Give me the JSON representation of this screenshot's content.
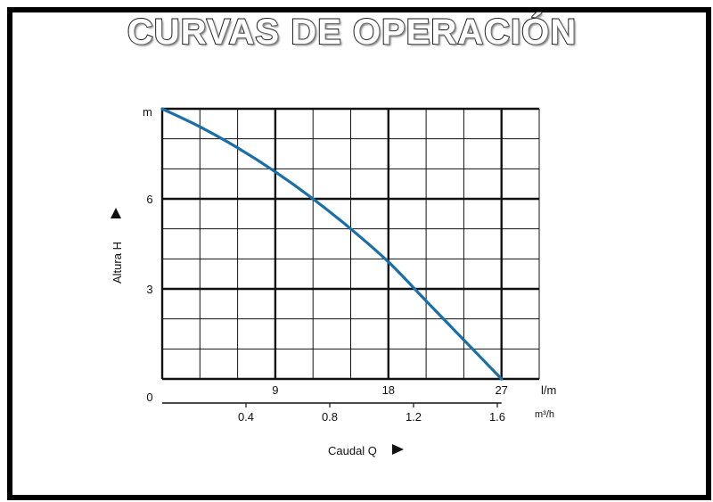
{
  "title": "CURVAS DE OPERACIÓN",
  "chart_data": {
    "type": "line",
    "title": "CURVAS DE OPERACIÓN",
    "ylabel": "Altura H",
    "xlabel": "Caudal Q",
    "y_unit": "m",
    "y_ticks": [
      "0",
      "3",
      "6"
    ],
    "ylim": [
      0,
      9
    ],
    "x_ticks_lpm": [
      "9",
      "18",
      "27"
    ],
    "x_unit_lpm": "l/m",
    "xlim_lpm": [
      0,
      30
    ],
    "x_ticks_m3h": [
      "0.4",
      "0.8",
      "1.2",
      "1.6"
    ],
    "x_unit_m3h": "m³/h",
    "grid": true,
    "series": [
      {
        "color": "#1a6fa8",
        "x": [
          0,
          3,
          6,
          9,
          12,
          15,
          18,
          21,
          24,
          27
        ],
        "y": [
          9,
          8.4,
          7.7,
          6.9,
          6.0,
          5.0,
          3.9,
          2.6,
          1.3,
          0
        ]
      }
    ]
  }
}
